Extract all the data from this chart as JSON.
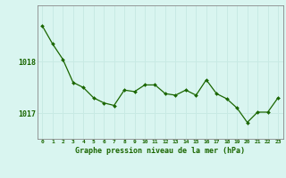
{
  "x": [
    0,
    1,
    2,
    3,
    4,
    5,
    6,
    7,
    8,
    9,
    10,
    11,
    12,
    13,
    14,
    15,
    16,
    17,
    18,
    19,
    20,
    21,
    22,
    23
  ],
  "y": [
    1018.7,
    1018.35,
    1018.05,
    1017.6,
    1017.5,
    1017.3,
    1017.2,
    1017.15,
    1017.45,
    1017.42,
    1017.55,
    1017.55,
    1017.38,
    1017.35,
    1017.45,
    1017.35,
    1017.65,
    1017.38,
    1017.28,
    1017.1,
    1016.82,
    1017.02,
    1017.02,
    1017.3
  ],
  "line_color": "#1a6600",
  "marker_color": "#1a6600",
  "bg_color": "#d9f5f0",
  "grid_color": "#c8eae4",
  "axis_color": "#888888",
  "title": "Graphe pression niveau de la mer (hPa)",
  "title_color": "#1a6600",
  "yticks": [
    1017,
    1018
  ],
  "ylim": [
    1016.5,
    1019.1
  ],
  "xlim": [
    -0.5,
    23.5
  ]
}
